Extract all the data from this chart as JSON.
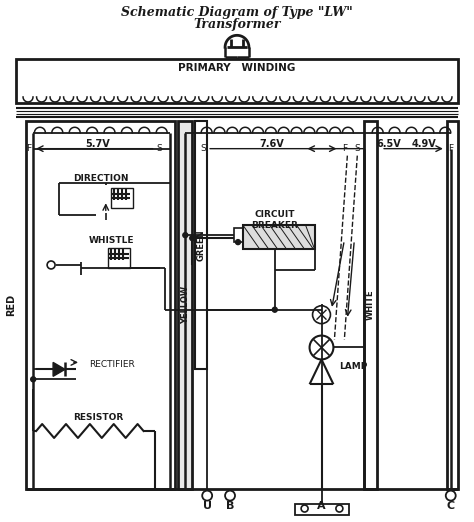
{
  "title_line1": "Schematic Diagram of Type \"LW\"",
  "title_line2": "Transformer",
  "bg_color": "#ffffff",
  "line_color": "#1a1a1a",
  "text_color": "#1a1a1a",
  "voltages": {
    "v1": "5.7V",
    "v2": "7.6V",
    "v3": "6.5V",
    "v4": "4.9V"
  },
  "labels_bottom": [
    "U",
    "B",
    "A",
    "C"
  ],
  "labels_side_left": "RED",
  "labels_side_yellow": "YELLOW",
  "labels_side_green": "GREEN",
  "labels_side_white": "WHITE",
  "figsize": [
    4.74,
    5.22
  ],
  "dpi": 100
}
